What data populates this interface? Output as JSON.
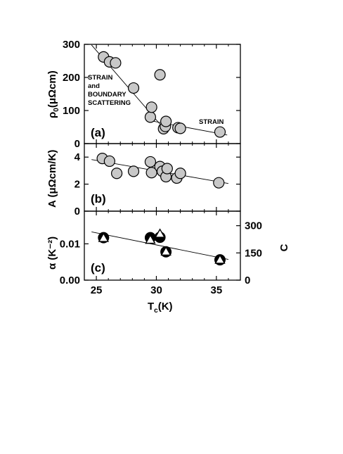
{
  "chart_data": [
    {
      "panel": "a",
      "type": "scatter",
      "panel_label": "(a)",
      "ylabel_main": "ρ",
      "ylabel_sub": "0",
      "ylabel_rest": "(μΩcm)",
      "ylim": [
        0,
        300
      ],
      "yticks": [
        "0",
        "100",
        "200",
        "300"
      ],
      "xlim": [
        24,
        37
      ],
      "points": [
        {
          "x": 25.6,
          "y": 262
        },
        {
          "x": 26.1,
          "y": 247
        },
        {
          "x": 26.6,
          "y": 244
        },
        {
          "x": 28.1,
          "y": 168
        },
        {
          "x": 29.5,
          "y": 80
        },
        {
          "x": 29.6,
          "y": 110
        },
        {
          "x": 30.3,
          "y": 208
        },
        {
          "x": 30.6,
          "y": 45
        },
        {
          "x": 30.75,
          "y": 52
        },
        {
          "x": 30.8,
          "y": 67
        },
        {
          "x": 31.8,
          "y": 48
        },
        {
          "x": 32.0,
          "y": 46
        },
        {
          "x": 35.3,
          "y": 35
        }
      ],
      "fit_lines": [
        {
          "x": [
            24.6,
            30.8
          ],
          "y": [
            298,
            38
          ]
        },
        {
          "x": [
            29.1,
            35.9
          ],
          "y": [
            72,
            26
          ]
        }
      ],
      "annotations": [
        {
          "lines": [
            "STRAIN",
            "and",
            "BOUNDARY",
            "SCATTERING"
          ]
        },
        {
          "lines": [
            "STRAIN"
          ]
        }
      ]
    },
    {
      "panel": "b",
      "type": "scatter",
      "panel_label": "(b)",
      "ylabel": "A (μΩcm/K)",
      "ylim": [
        0,
        5
      ],
      "yticks": [
        "0",
        "2",
        "4"
      ],
      "xlim": [
        24,
        37
      ],
      "points": [
        {
          "x": 25.5,
          "y": 3.9
        },
        {
          "x": 26.1,
          "y": 3.7
        },
        {
          "x": 26.7,
          "y": 2.8
        },
        {
          "x": 28.1,
          "y": 2.95
        },
        {
          "x": 29.5,
          "y": 3.65
        },
        {
          "x": 29.6,
          "y": 2.85
        },
        {
          "x": 30.3,
          "y": 3.3
        },
        {
          "x": 30.5,
          "y": 2.95
        },
        {
          "x": 30.8,
          "y": 2.55
        },
        {
          "x": 30.9,
          "y": 3.15
        },
        {
          "x": 31.7,
          "y": 2.45
        },
        {
          "x": 32.0,
          "y": 2.8
        },
        {
          "x": 35.2,
          "y": 2.1
        }
      ],
      "fit_lines": [
        {
          "x": [
            24.6,
            36.0
          ],
          "y": [
            3.82,
            2.05
          ]
        }
      ]
    },
    {
      "panel": "c",
      "type": "scatter",
      "panel_label": "(c)",
      "ylabel": "α (K⁻²)",
      "ylim": [
        0,
        0.019
      ],
      "yticks": [
        "0.00",
        "0.01"
      ],
      "right_axis": {
        "label": "C",
        "ylim": [
          0,
          380
        ],
        "ticks": [
          {
            "label": "0",
            "value": 0
          },
          {
            "label": "150",
            "value": 150
          },
          {
            "label": "300",
            "value": 300
          }
        ]
      },
      "xlim": [
        24,
        37
      ],
      "xlabel_main": "T",
      "xlabel_sub": "c",
      "xlabel_rest": "(K)",
      "xticks": [
        "25",
        "30",
        "35"
      ],
      "series": [
        {
          "marker": "filled-circle",
          "points": [
            {
              "x": 25.6,
              "y": 0.0117
            },
            {
              "x": 29.5,
              "y": 0.0117
            },
            {
              "x": 30.3,
              "y": 0.0118
            },
            {
              "x": 30.8,
              "y": 0.0078
            },
            {
              "x": 35.3,
              "y": 0.0056
            }
          ]
        },
        {
          "marker": "open-triangle",
          "axis": "right",
          "points": [
            {
              "x": 25.6,
              "y": 232
            },
            {
              "x": 29.5,
              "y": 222
            },
            {
              "x": 30.3,
              "y": 255
            },
            {
              "x": 30.8,
              "y": 157
            },
            {
              "x": 35.3,
              "y": 112
            }
          ]
        }
      ],
      "fit_lines": [
        {
          "x": [
            24.6,
            36.0
          ],
          "y": [
            0.0133,
            0.0057
          ]
        }
      ]
    }
  ]
}
